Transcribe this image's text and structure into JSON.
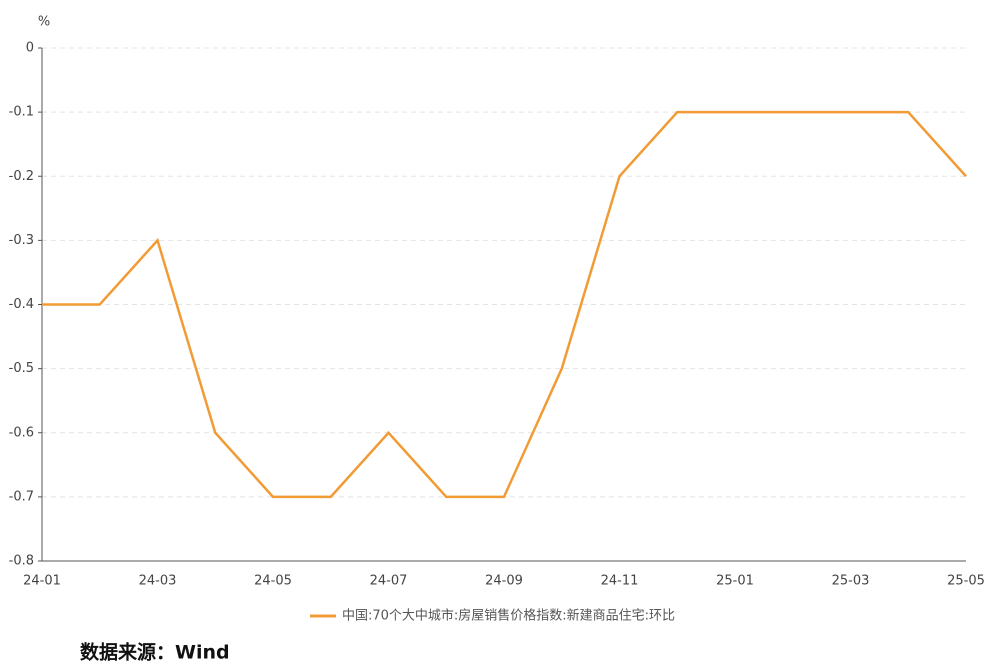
{
  "chart_data": {
    "type": "line",
    "y_unit": "%",
    "categories": [
      "24-01",
      null,
      "24-03",
      null,
      "24-05",
      null,
      "24-07",
      null,
      "24-09",
      null,
      "24-11",
      null,
      "25-01",
      null,
      "25-03",
      null,
      "25-05"
    ],
    "series": [
      {
        "name": "中国:70个大中城市:房屋销售价格指数:新建商品住宅:环比",
        "color": "#f29b35",
        "values": [
          -0.4,
          -0.4,
          -0.3,
          -0.6,
          -0.7,
          -0.7,
          -0.6,
          -0.7,
          -0.7,
          -0.5,
          -0.2,
          -0.1,
          -0.1,
          -0.1,
          -0.1,
          -0.1,
          -0.2
        ]
      }
    ],
    "ylim": [
      -0.8,
      0
    ],
    "yticks": [
      0,
      -0.1,
      -0.2,
      -0.3,
      -0.4,
      -0.5,
      -0.6,
      -0.7,
      -0.8
    ],
    "grid": true,
    "source": "数据来源：Wind"
  }
}
